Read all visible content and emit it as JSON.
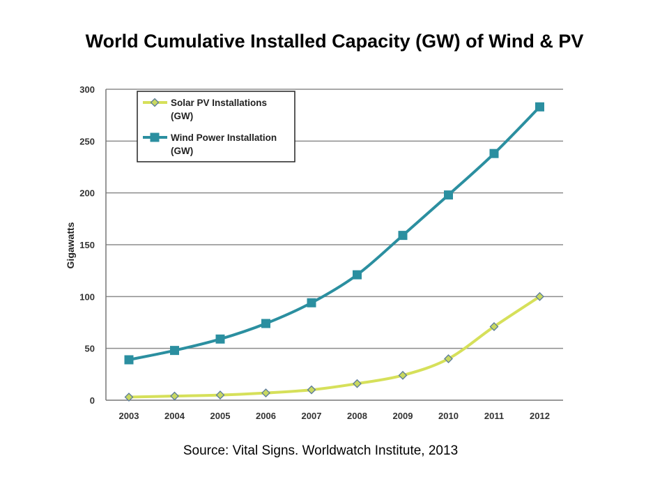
{
  "slide": {
    "title": "World Cumulative Installed Capacity (GW) of Wind & PV",
    "source": "Source: Vital Signs. Worldwatch Institute, 2013"
  },
  "chart_data": {
    "type": "line",
    "title": "",
    "xlabel": "",
    "ylabel": "Gigawatts",
    "ylim": [
      0,
      300
    ],
    "yticks": [
      0,
      50,
      100,
      150,
      200,
      250,
      300
    ],
    "grid": true,
    "legend_position": "top-left",
    "categories": [
      "2003",
      "2004",
      "2005",
      "2006",
      "2007",
      "2008",
      "2009",
      "2010",
      "2011",
      "2012"
    ],
    "series": [
      {
        "name": "Solar PV Installations (GW)",
        "legend_lines": [
          "Solar PV Installations",
          "(GW)"
        ],
        "marker": "diamond",
        "color": "#d6e05a",
        "marker_fill": "#c8d860",
        "marker_stroke": "#5a7a9a",
        "values": [
          3,
          4,
          5,
          7,
          10,
          16,
          24,
          40,
          71,
          100
        ]
      },
      {
        "name": "Wind Power Installation (GW)",
        "legend_lines": [
          "Wind Power Installation",
          "(GW)"
        ],
        "marker": "square",
        "color": "#2b8fa0",
        "marker_fill": "#2b8fa0",
        "marker_stroke": "#2b8fa0",
        "values": [
          39,
          48,
          59,
          74,
          94,
          121,
          159,
          198,
          238,
          283
        ]
      }
    ]
  }
}
